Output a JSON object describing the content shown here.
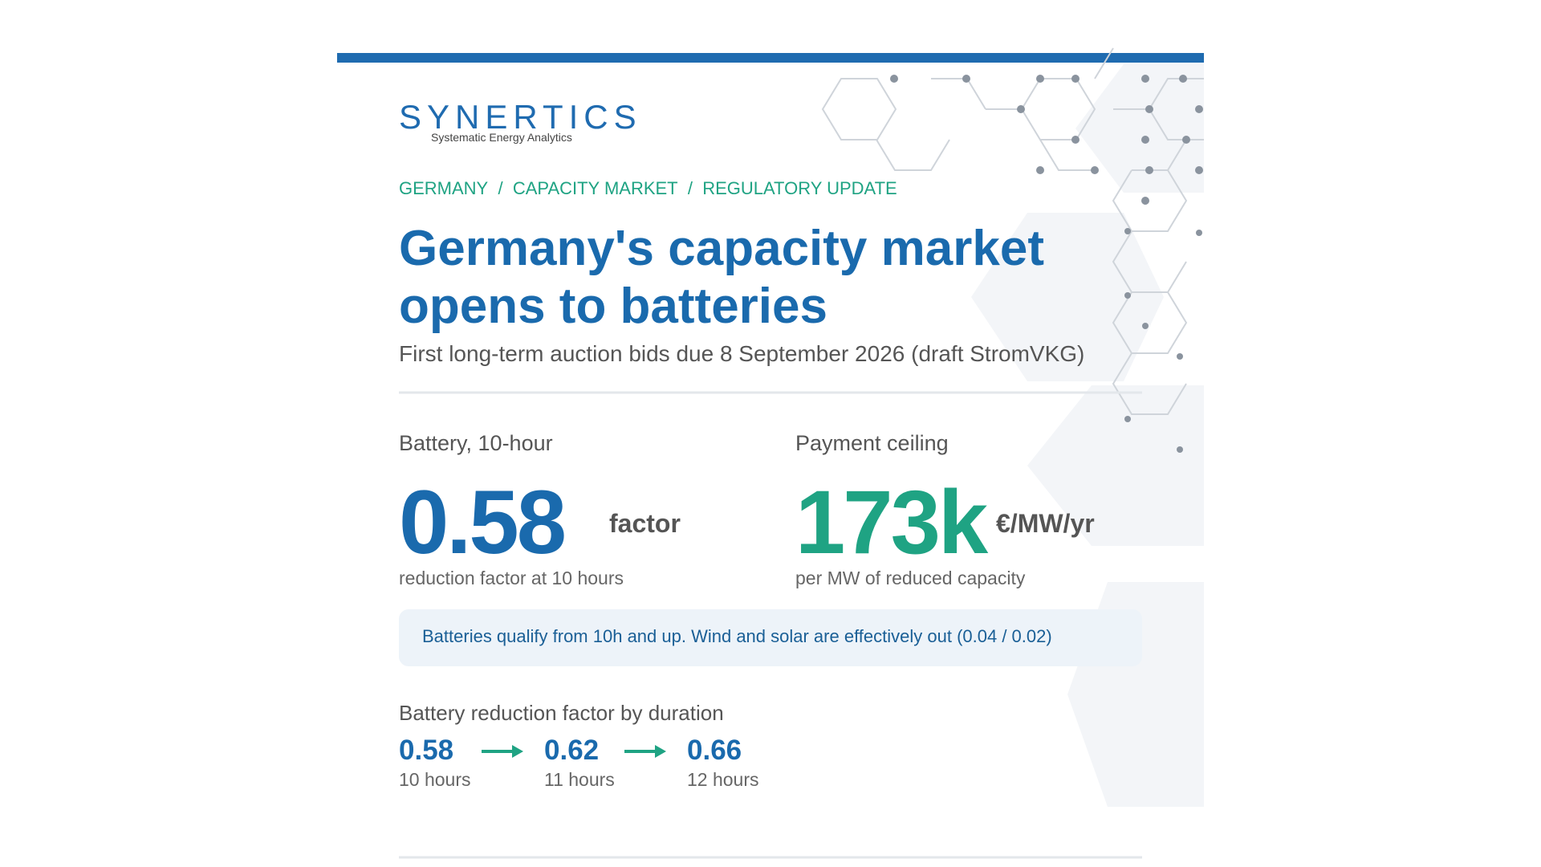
{
  "header": {
    "logo": "SYNERTICS",
    "tagline": "Systematic Energy Analytics"
  },
  "breadcrumbs": [
    "GERMANY",
    "CAPACITY MARKET",
    "REGULATORY UPDATE"
  ],
  "breadcrumb_separator": "/",
  "title": [
    "Germany's capacity market",
    "opens to batteries"
  ],
  "subtitle": "First long-term auction bids due 8 September 2026 (draft StromVKG)",
  "stats": [
    {
      "label": "Battery, 10-hour",
      "value": 0.58,
      "unit": "factor",
      "caption": "reduction factor at 10 hours"
    },
    {
      "label": "Payment ceiling",
      "value": "173k",
      "unit": "€/MW/yr",
      "caption": "per MW of reduced capacity"
    }
  ],
  "callout": "Batteries qualify from 10h and up. Wind and solar are effectively out (0.04 / 0.02)",
  "progression": {
    "title": "Battery reduction factor by duration",
    "steps": [
      {
        "value": 0.58,
        "label": "10 hours"
      },
      {
        "value": 0.62,
        "label": "11 hours"
      },
      {
        "value": 0.66,
        "label": "12 hours"
      }
    ]
  }
}
